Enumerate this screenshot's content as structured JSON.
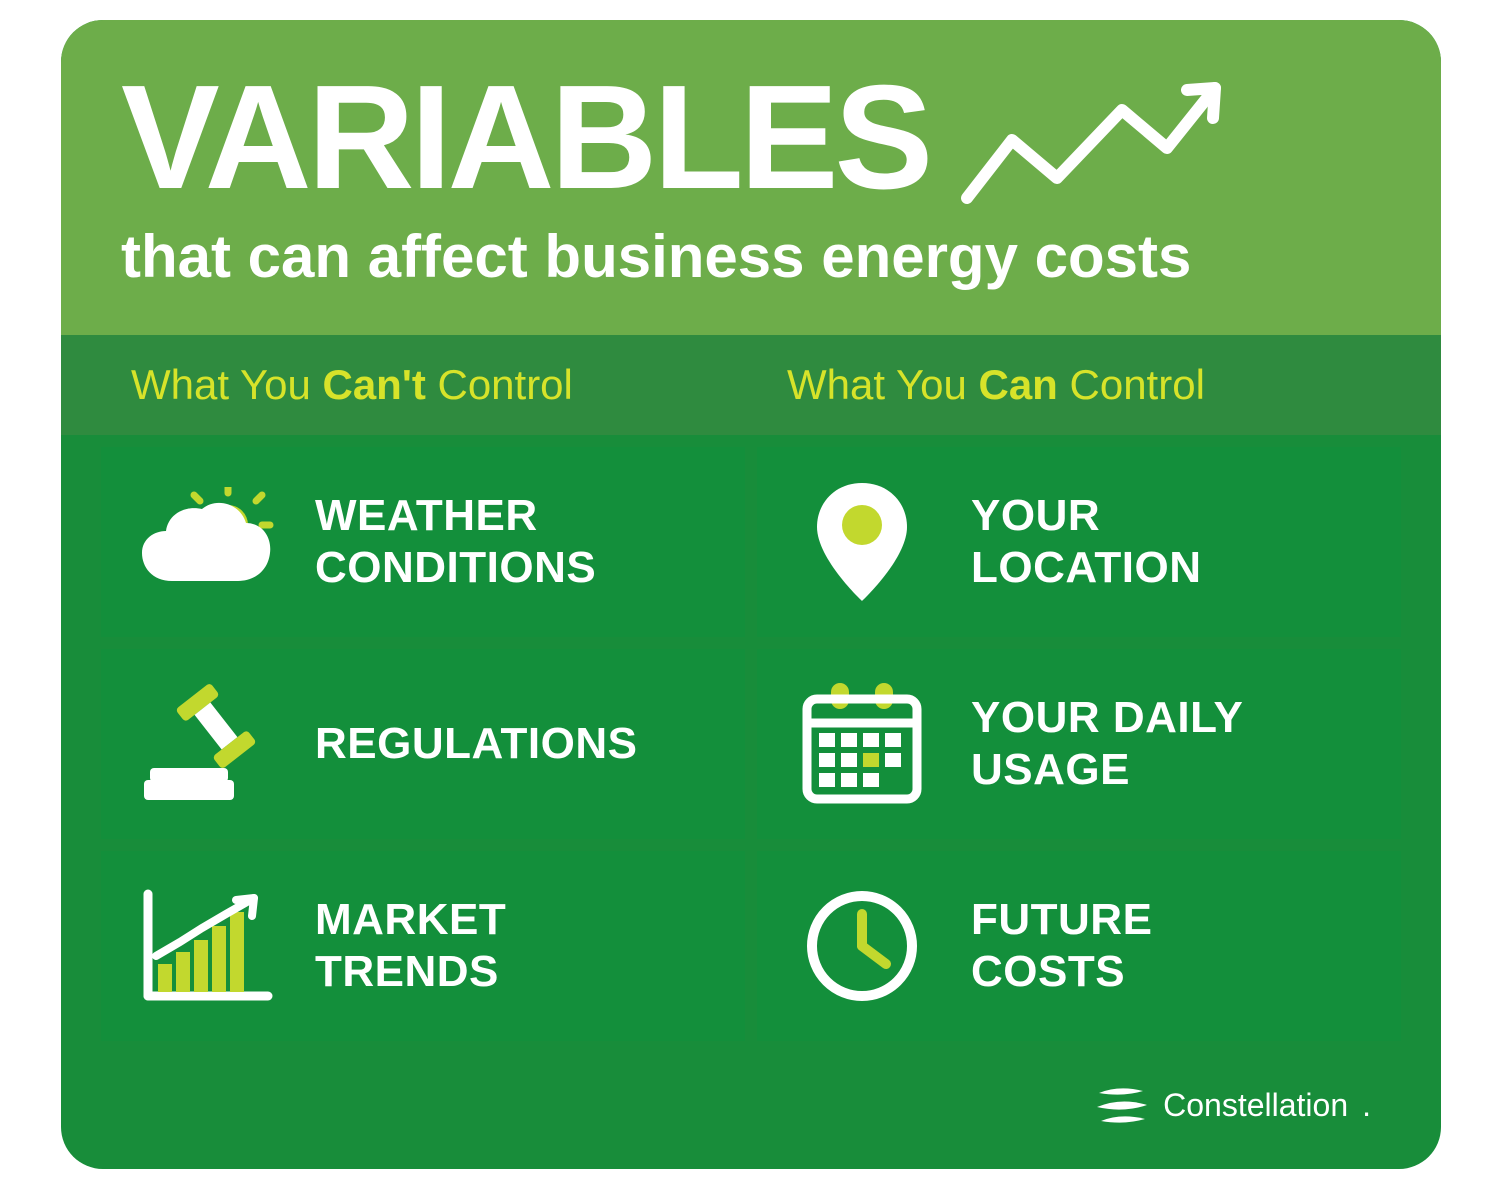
{
  "card": {
    "background_color": "#188d3a",
    "border_radius": 42
  },
  "header": {
    "background_color": "#6dad4a",
    "title_main": "VARIABLES",
    "title_main_color": "#ffffff",
    "title_main_fontsize": 148,
    "subtitle": "that can affect business energy costs",
    "subtitle_color": "#ffffff",
    "subtitle_fontsize": 60,
    "arrow_color": "#ffffff"
  },
  "column_headers": {
    "background_color": "#2f8b3f",
    "text_color": "#d7e32a",
    "fontsize": 42,
    "left": {
      "pre": "What You ",
      "bold": "Can't",
      "post": " Control"
    },
    "right": {
      "pre": "What You ",
      "bold": "Can",
      "post": " Control"
    }
  },
  "cells": {
    "background_color": "#138f3b",
    "label_color": "#ffffff",
    "label_fontsize": 44,
    "icon_primary_color": "#ffffff",
    "icon_accent_color": "#c2d82e",
    "items": [
      {
        "icon": "weather",
        "label": "WEATHER\nCONDITIONS"
      },
      {
        "icon": "location",
        "label": "YOUR\nLOCATION"
      },
      {
        "icon": "gavel",
        "label": "REGULATIONS"
      },
      {
        "icon": "calendar",
        "label": "YOUR DAILY\nUSAGE"
      },
      {
        "icon": "chart",
        "label": "MARKET\nTRENDS"
      },
      {
        "icon": "clock",
        "label": "FUTURE\nCOSTS"
      }
    ]
  },
  "footer": {
    "brand_text": "Constellation",
    "brand_color": "#ffffff",
    "brand_fontsize": 32
  }
}
